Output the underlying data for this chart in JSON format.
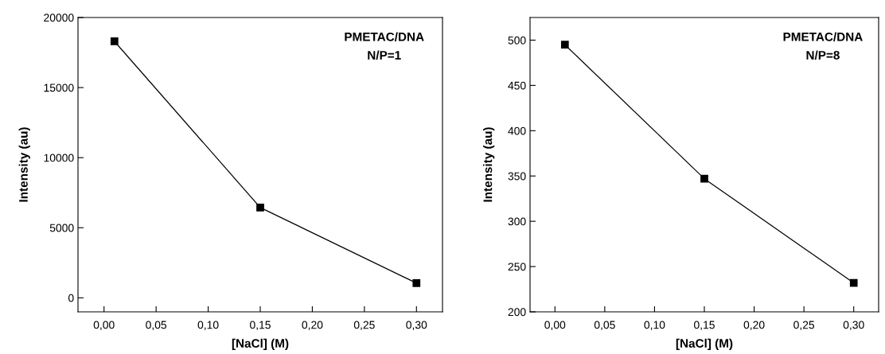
{
  "chart_data": [
    {
      "type": "line",
      "xlabel": "[NaCl] (M)",
      "ylabel": "Intensity (au)",
      "annotations": [
        "PMETAC/DNA\nN/P=1"
      ],
      "x": [
        0.01,
        0.15,
        0.3
      ],
      "series": [
        {
          "color": "#000000",
          "values": [
            18300,
            6440,
            1050
          ]
        }
      ],
      "xlim": [
        -0.025,
        0.325
      ],
      "xticks": [
        {
          "value": 0,
          "label": "0,00"
        },
        {
          "value": 0.05,
          "label": "0,05"
        },
        {
          "value": 0.1,
          "label": "0,10"
        },
        {
          "value": 0.15,
          "label": "0,15"
        },
        {
          "value": 0.2,
          "label": "0,20"
        },
        {
          "value": 0.25,
          "label": "0,25"
        },
        {
          "value": 0.3,
          "label": "0,30"
        }
      ],
      "ylim": [
        -1000,
        20000
      ],
      "yticks": [
        0,
        5000,
        10000,
        15000,
        20000
      ],
      "marker": "square",
      "line_style": "solid",
      "grid": false,
      "legend": false
    },
    {
      "type": "line",
      "xlabel": "[NaCl] (M)",
      "ylabel": "Intensity (au)",
      "annotations": [
        "PMETAC/DNA\nN/P=8"
      ],
      "x": [
        0.01,
        0.15,
        0.3
      ],
      "series": [
        {
          "color": "#000000",
          "values": [
            495,
            347,
            232
          ]
        }
      ],
      "xlim": [
        -0.025,
        0.325
      ],
      "xticks": [
        {
          "value": 0,
          "label": "0,00"
        },
        {
          "value": 0.05,
          "label": "0,05"
        },
        {
          "value": 0.1,
          "label": "0,10"
        },
        {
          "value": 0.15,
          "label": "0,15"
        },
        {
          "value": 0.2,
          "label": "0,20"
        },
        {
          "value": 0.25,
          "label": "0,25"
        },
        {
          "value": 0.3,
          "label": "0,30"
        }
      ],
      "ylim": [
        200,
        525
      ],
      "yticks": [
        200,
        250,
        300,
        350,
        400,
        450,
        500
      ],
      "marker": "square",
      "line_style": "solid",
      "grid": false,
      "legend": false
    }
  ]
}
